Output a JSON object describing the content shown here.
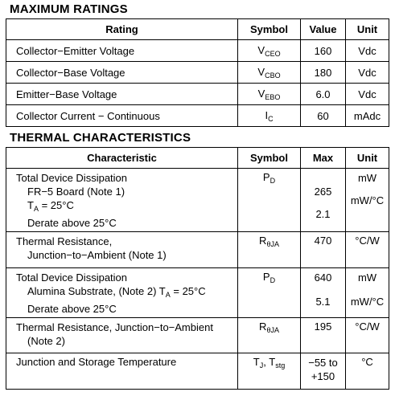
{
  "max_ratings": {
    "title": "MAXIMUM RATINGS",
    "headers": [
      "Rating",
      "Symbol",
      "Value",
      "Unit"
    ],
    "rows": [
      {
        "rating": "Collector−Emitter Voltage",
        "sym": "V",
        "sub": "CEO",
        "value": "160",
        "unit": "Vdc"
      },
      {
        "rating": "Collector−Base Voltage",
        "sym": "V",
        "sub": "CBO",
        "value": "180",
        "unit": "Vdc"
      },
      {
        "rating": "Emitter−Base Voltage",
        "sym": "V",
        "sub": "EBO",
        "value": "6.0",
        "unit": "Vdc"
      },
      {
        "rating": "Collector Current − Continuous",
        "sym": "I",
        "sub": "C",
        "value": "60",
        "unit": "mAdc"
      }
    ]
  },
  "thermal": {
    "title": "THERMAL CHARACTERISTICS",
    "headers": [
      "Characteristic",
      "Symbol",
      "Max",
      "Unit"
    ],
    "r1": {
      "l1": "Total Device Dissipation",
      "l2": "FR−5 Board (Note 1)",
      "l3a": "T",
      "l3sub": "A",
      "l3b": " = 25°C",
      "l4": "Derate above 25°C",
      "sym": "P",
      "sub": "D",
      "max1": "265",
      "max2": "2.1",
      "unit1": "mW",
      "unit2": "mW/°C"
    },
    "r2": {
      "l1": "Thermal Resistance,",
      "l2": "Junction−to−Ambient (Note 1)",
      "sym": "R",
      "sub": "θJA",
      "max": "470",
      "unit": "°C/W"
    },
    "r3": {
      "l1": "Total Device Dissipation",
      "l2a": "Alumina Substrate, (Note 2) T",
      "l2sub": "A",
      "l2b": " = 25°C",
      "l3": "Derate above 25°C",
      "sym": "P",
      "sub": "D",
      "max1": "640",
      "max2": "5.1",
      "unit1": "mW",
      "unit2": "mW/°C"
    },
    "r4": {
      "l1": "Thermal Resistance, Junction−to−Ambient",
      "l2": "(Note 2)",
      "sym": "R",
      "sub": "θJA",
      "max": "195",
      "unit": "°C/W"
    },
    "r5": {
      "l1": "Junction and Storage Temperature",
      "sym1": "T",
      "sub1": "J",
      "sep": ", T",
      "sub2": "stg",
      "max1": "−55 to",
      "max2": "+150",
      "unit": "°C"
    }
  }
}
